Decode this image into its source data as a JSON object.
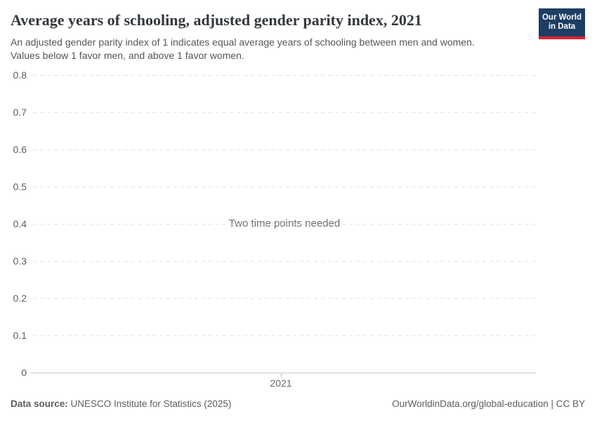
{
  "header": {
    "title": "Average years of schooling, adjusted gender parity index, 2021",
    "subtitle_lines": [
      "An adjusted gender parity index of 1 indicates equal average years of schooling between men and women.",
      "Values below 1 favor men, and above 1 favor women."
    ],
    "logo": {
      "line1": "Our World",
      "line2": "in Data",
      "background_color": "#1d3d63",
      "accent_color": "#e0232e"
    }
  },
  "chart_data": {
    "type": "line",
    "title": "Average years of schooling, adjusted gender parity index, 2021",
    "series": [],
    "empty_state_message": "Two time points needed",
    "x_ticks": [
      {
        "label": "2021"
      }
    ],
    "y_axis": {
      "range": [
        0,
        0.8
      ],
      "ticks": [
        {
          "value": 0,
          "label": "0"
        },
        {
          "value": 0.1,
          "label": "0.1"
        },
        {
          "value": 0.2,
          "label": "0.2"
        },
        {
          "value": 0.3,
          "label": "0.3"
        },
        {
          "value": 0.4,
          "label": "0.4"
        },
        {
          "value": 0.5,
          "label": "0.5"
        },
        {
          "value": 0.6,
          "label": "0.6"
        },
        {
          "value": 0.7,
          "label": "0.7"
        },
        {
          "value": 0.8,
          "label": "0.8"
        }
      ]
    },
    "grid": "horizontal-dashed",
    "legend": "none",
    "colors": {
      "gridline": "#e2e2e2",
      "axis_line": "#c8c8c8",
      "tick_mark": "#b5b5b5",
      "y_tick_label": "#606060",
      "x_tick_label": "#6a6a6a",
      "message_text": "#6d6d6d"
    }
  },
  "footer": {
    "source_label": "Data source:",
    "source_text": "UNESCO Institute for Statistics (2025)",
    "link_text": "OurWorldinData.org/global-education | CC BY"
  }
}
